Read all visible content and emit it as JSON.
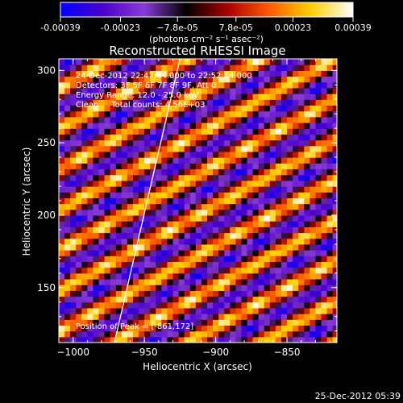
{
  "chart_data": {
    "type": "heatmap",
    "title": "Reconstructed RHESSI Image",
    "xlabel": "Heliocentric X (arcsec)",
    "ylabel": "Heliocentric Y (arcsec)",
    "xlim": [
      -1010,
      -815
    ],
    "ylim": [
      112,
      308
    ],
    "x_ticks": [
      -1000,
      -950,
      -900,
      -850
    ],
    "y_ticks": [
      150,
      200,
      250,
      300
    ],
    "colorbar": {
      "range": [
        -0.00039,
        0.00039
      ],
      "ticks": [
        -0.00039,
        -0.00023,
        -7.8e-05,
        7.8e-05,
        0.00023,
        0.00039
      ],
      "tick_labels": [
        "-0.00039",
        "-0.00023",
        "−7.8e-05",
        "7.8e-05",
        "0.00023",
        "0.00039"
      ],
      "units": "(photons cm⁻² s⁻¹ asec⁻²)",
      "colormap": [
        "#0000ff",
        "#4a00cc",
        "#8a3ad8",
        "#000000",
        "#aa0000",
        "#ff5a00",
        "#ffd000",
        "#ffffff"
      ]
    },
    "annotations": {
      "time": "24-Dec-2012 22:47:44.000 to 22:52:14.000",
      "detectors": "Detectors: 3F 5F 6F 7F 8F 9F, Att 0",
      "energy": "Energy Range: 12.0 - 25.0 keV",
      "clean": "Clean     Total counts: 4.56E+03",
      "peak": "Position of Peak = [-861,172]"
    },
    "peak_position": [
      -861,
      172
    ],
    "limb_line": [
      [
        -971,
        112
      ],
      [
        -925,
        308
      ]
    ],
    "pattern": {
      "description_values": "diagonal fringe ridges of positive flux",
      "slope_y_per_x": 0.54,
      "ridge_spacing_y": 28,
      "pixel_size_arcsec": 4
    },
    "footer": "25-Dec-2012 05:39"
  }
}
